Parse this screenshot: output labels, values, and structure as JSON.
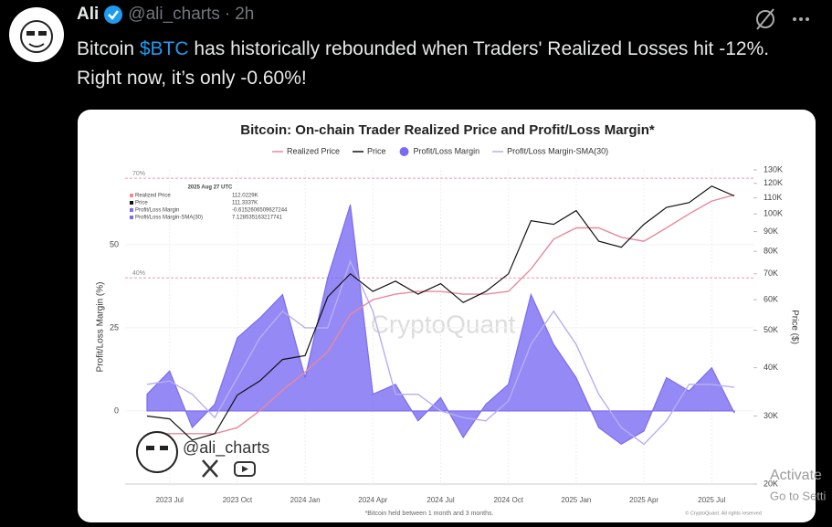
{
  "tweet": {
    "author": "Ali",
    "handle": "@ali_charts",
    "separator": "·",
    "time": "2h",
    "text_before": "Bitcoin ",
    "cashtag": "$BTC",
    "text_after": " has historically rebounded when Traders' Realized Losses hit -12%. Right now, it’s only -0.60%!"
  },
  "chart_data": {
    "type": "line",
    "title": "Bitcoin: On-chain Trader Realized Price and Profit/Loss Margin*",
    "ylabel": "Profit/Loss Margin (%)",
    "y2label": "Price ($)",
    "x": [
      "2023 Jun",
      "2023 Jul",
      "2023 Aug",
      "2023 Sep",
      "2023 Oct",
      "2023 Nov",
      "2023 Dec",
      "2024 Jan",
      "2024 Feb",
      "2024 Mar",
      "2024 Apr",
      "2024 May",
      "2024 Jun",
      "2024 Jul",
      "2024 Aug",
      "2024 Sep",
      "2024 Oct",
      "2024 Nov",
      "2024 Dec",
      "2025 Jan",
      "2025 Feb",
      "2025 Mar",
      "2025 Apr",
      "2025 May",
      "2025 Jun",
      "2025 Jul",
      "2025 Aug"
    ],
    "xticks": [
      "2023 Jul",
      "2023 Oct",
      "2024 Jan",
      "2024 Apr",
      "2024 Jul",
      "2024 Oct",
      "2025 Jan",
      "2025 Apr",
      "2025 Jul"
    ],
    "series": [
      {
        "name": "Realized Price",
        "color": "#e8899c",
        "axis": "y2",
        "style": "line",
        "values": [
          27000,
          27000,
          27000,
          27000,
          28000,
          31000,
          35000,
          39000,
          44000,
          55000,
          60000,
          62000,
          63000,
          63000,
          62000,
          62000,
          63000,
          72000,
          86000,
          92000,
          92000,
          87000,
          85000,
          92000,
          100000,
          108000,
          112000
        ]
      },
      {
        "name": "Price",
        "color": "#111111",
        "axis": "y2",
        "style": "line",
        "values": [
          30000,
          29500,
          26000,
          27000,
          34000,
          37000,
          42000,
          43000,
          61000,
          70000,
          63000,
          67000,
          62000,
          66000,
          59000,
          63000,
          70000,
          96000,
          94000,
          102000,
          85000,
          82000,
          94000,
          104000,
          107000,
          118000,
          111300
        ]
      },
      {
        "name": "Profit/Loss Margin",
        "color": "#7a6cf2",
        "axis": "y",
        "style": "area",
        "values": [
          5,
          12,
          -5,
          2,
          22,
          28,
          35,
          10,
          40,
          62,
          5,
          8,
          -3,
          4,
          -8,
          2,
          8,
          35,
          20,
          10,
          -5,
          -10,
          -6,
          10,
          6,
          13,
          -0.6
        ]
      },
      {
        "name": "Profit/Loss Margin-SMA(30)",
        "color": "#b8aef0",
        "axis": "y",
        "style": "line",
        "values": [
          8,
          9,
          5,
          -2,
          10,
          22,
          30,
          25,
          25,
          45,
          30,
          5,
          5,
          0,
          -2,
          -3,
          3,
          20,
          30,
          20,
          5,
          -5,
          -10,
          -3,
          8,
          8,
          7.1
        ]
      }
    ],
    "ylim": [
      -22,
      72.5
    ],
    "yticks": [
      0,
      25,
      50
    ],
    "y2lim": [
      20000,
      130000
    ],
    "y2scale": "log",
    "y2ticks": [
      {
        "value": 20000,
        "label": "20K"
      },
      {
        "value": 30000,
        "label": "30K"
      },
      {
        "value": 40000,
        "label": "40K"
      },
      {
        "value": 50000,
        "label": "50K"
      },
      {
        "value": 60000,
        "label": "60K"
      },
      {
        "value": 70000,
        "label": "70K"
      },
      {
        "value": 80000,
        "label": "80K"
      },
      {
        "value": 90000,
        "label": "90K"
      },
      {
        "value": 100000,
        "label": "100K"
      },
      {
        "value": 110000,
        "label": "110K"
      },
      {
        "value": 120000,
        "label": "120K"
      },
      {
        "value": 130000,
        "label": "130K"
      }
    ],
    "grid": true,
    "reference_lines": [
      {
        "value": 70,
        "label": "70%"
      },
      {
        "value": 40,
        "label": "40%"
      }
    ],
    "info_box": {
      "date": "2025 Aug 27 UTC",
      "rows": [
        {
          "label": "Realized Price",
          "value": "112.0229K"
        },
        {
          "label": "Price",
          "value": "111.3337K"
        },
        {
          "label": "Profit/Loss Margin",
          "value": "-0.6152606509627244"
        },
        {
          "label": "Profit/Loss Margin-SMA(30)",
          "value": "7.128535163217741"
        }
      ]
    },
    "watermark": "CryptoQuant",
    "author_watermark": "@ali_charts",
    "footnote": "*Bitcoin held between 1 month and 3 months.",
    "copyright": "© CryptoQuant. All rights reserved"
  },
  "system_overlay": {
    "line1": "Activate",
    "line2": "Go to Setti"
  }
}
